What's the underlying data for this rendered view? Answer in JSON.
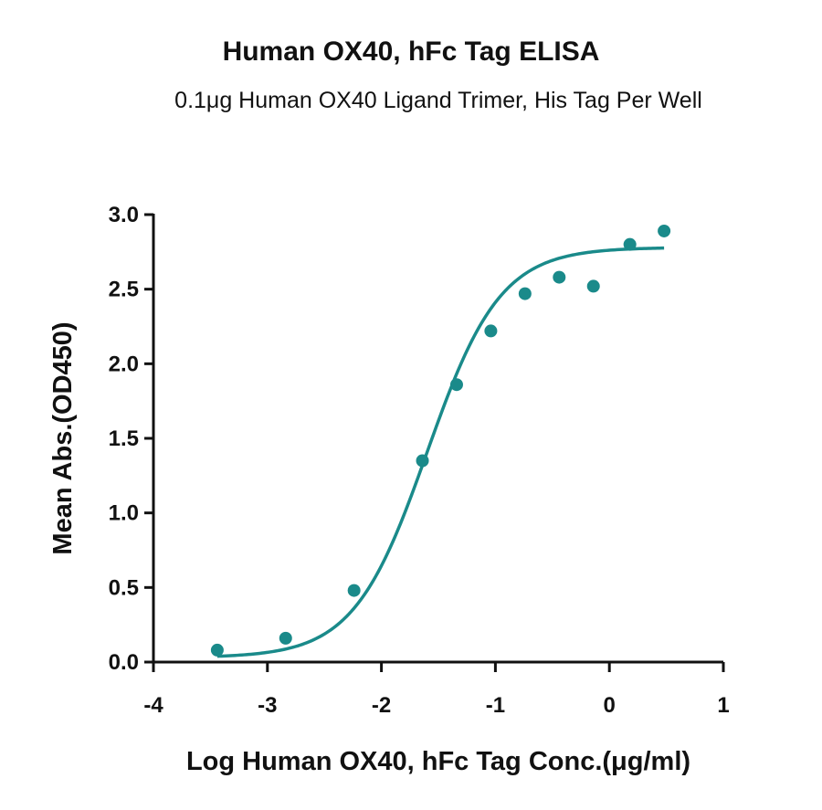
{
  "chart_data": {
    "type": "scatter",
    "title": "Human OX40, hFc Tag ELISA",
    "subtitle": "0.1μg Human OX40 Ligand Trimer, His Tag Per Well",
    "xlabel": "Log Human OX40, hFc Tag Conc.(μg/ml)",
    "ylabel": "Mean Abs.(OD450)",
    "xlim": [
      -4,
      1
    ],
    "ylim": [
      0,
      3
    ],
    "x_ticks": [
      "-4",
      "-3",
      "-2",
      "-1",
      "0",
      "1"
    ],
    "y_ticks": [
      "0.0",
      "0.5",
      "1.0",
      "1.5",
      "2.0",
      "2.5",
      "3.0"
    ],
    "grid": false,
    "color": "#1a8a8a",
    "series": [
      {
        "x": [
          -3.44,
          -2.84,
          -2.24,
          -1.64,
          -1.34,
          -1.04,
          -0.74,
          -0.44,
          -0.14,
          0.18,
          0.48
        ],
        "y": [
          0.08,
          0.16,
          0.48,
          1.35,
          1.86,
          2.22,
          2.47,
          2.58,
          2.52,
          2.8,
          2.89
        ],
        "fit_curve": {
          "model": "4PL",
          "bottom": 0.03,
          "top": 2.78,
          "logEC50": -1.6,
          "hill": 1.35
        }
      }
    ]
  }
}
